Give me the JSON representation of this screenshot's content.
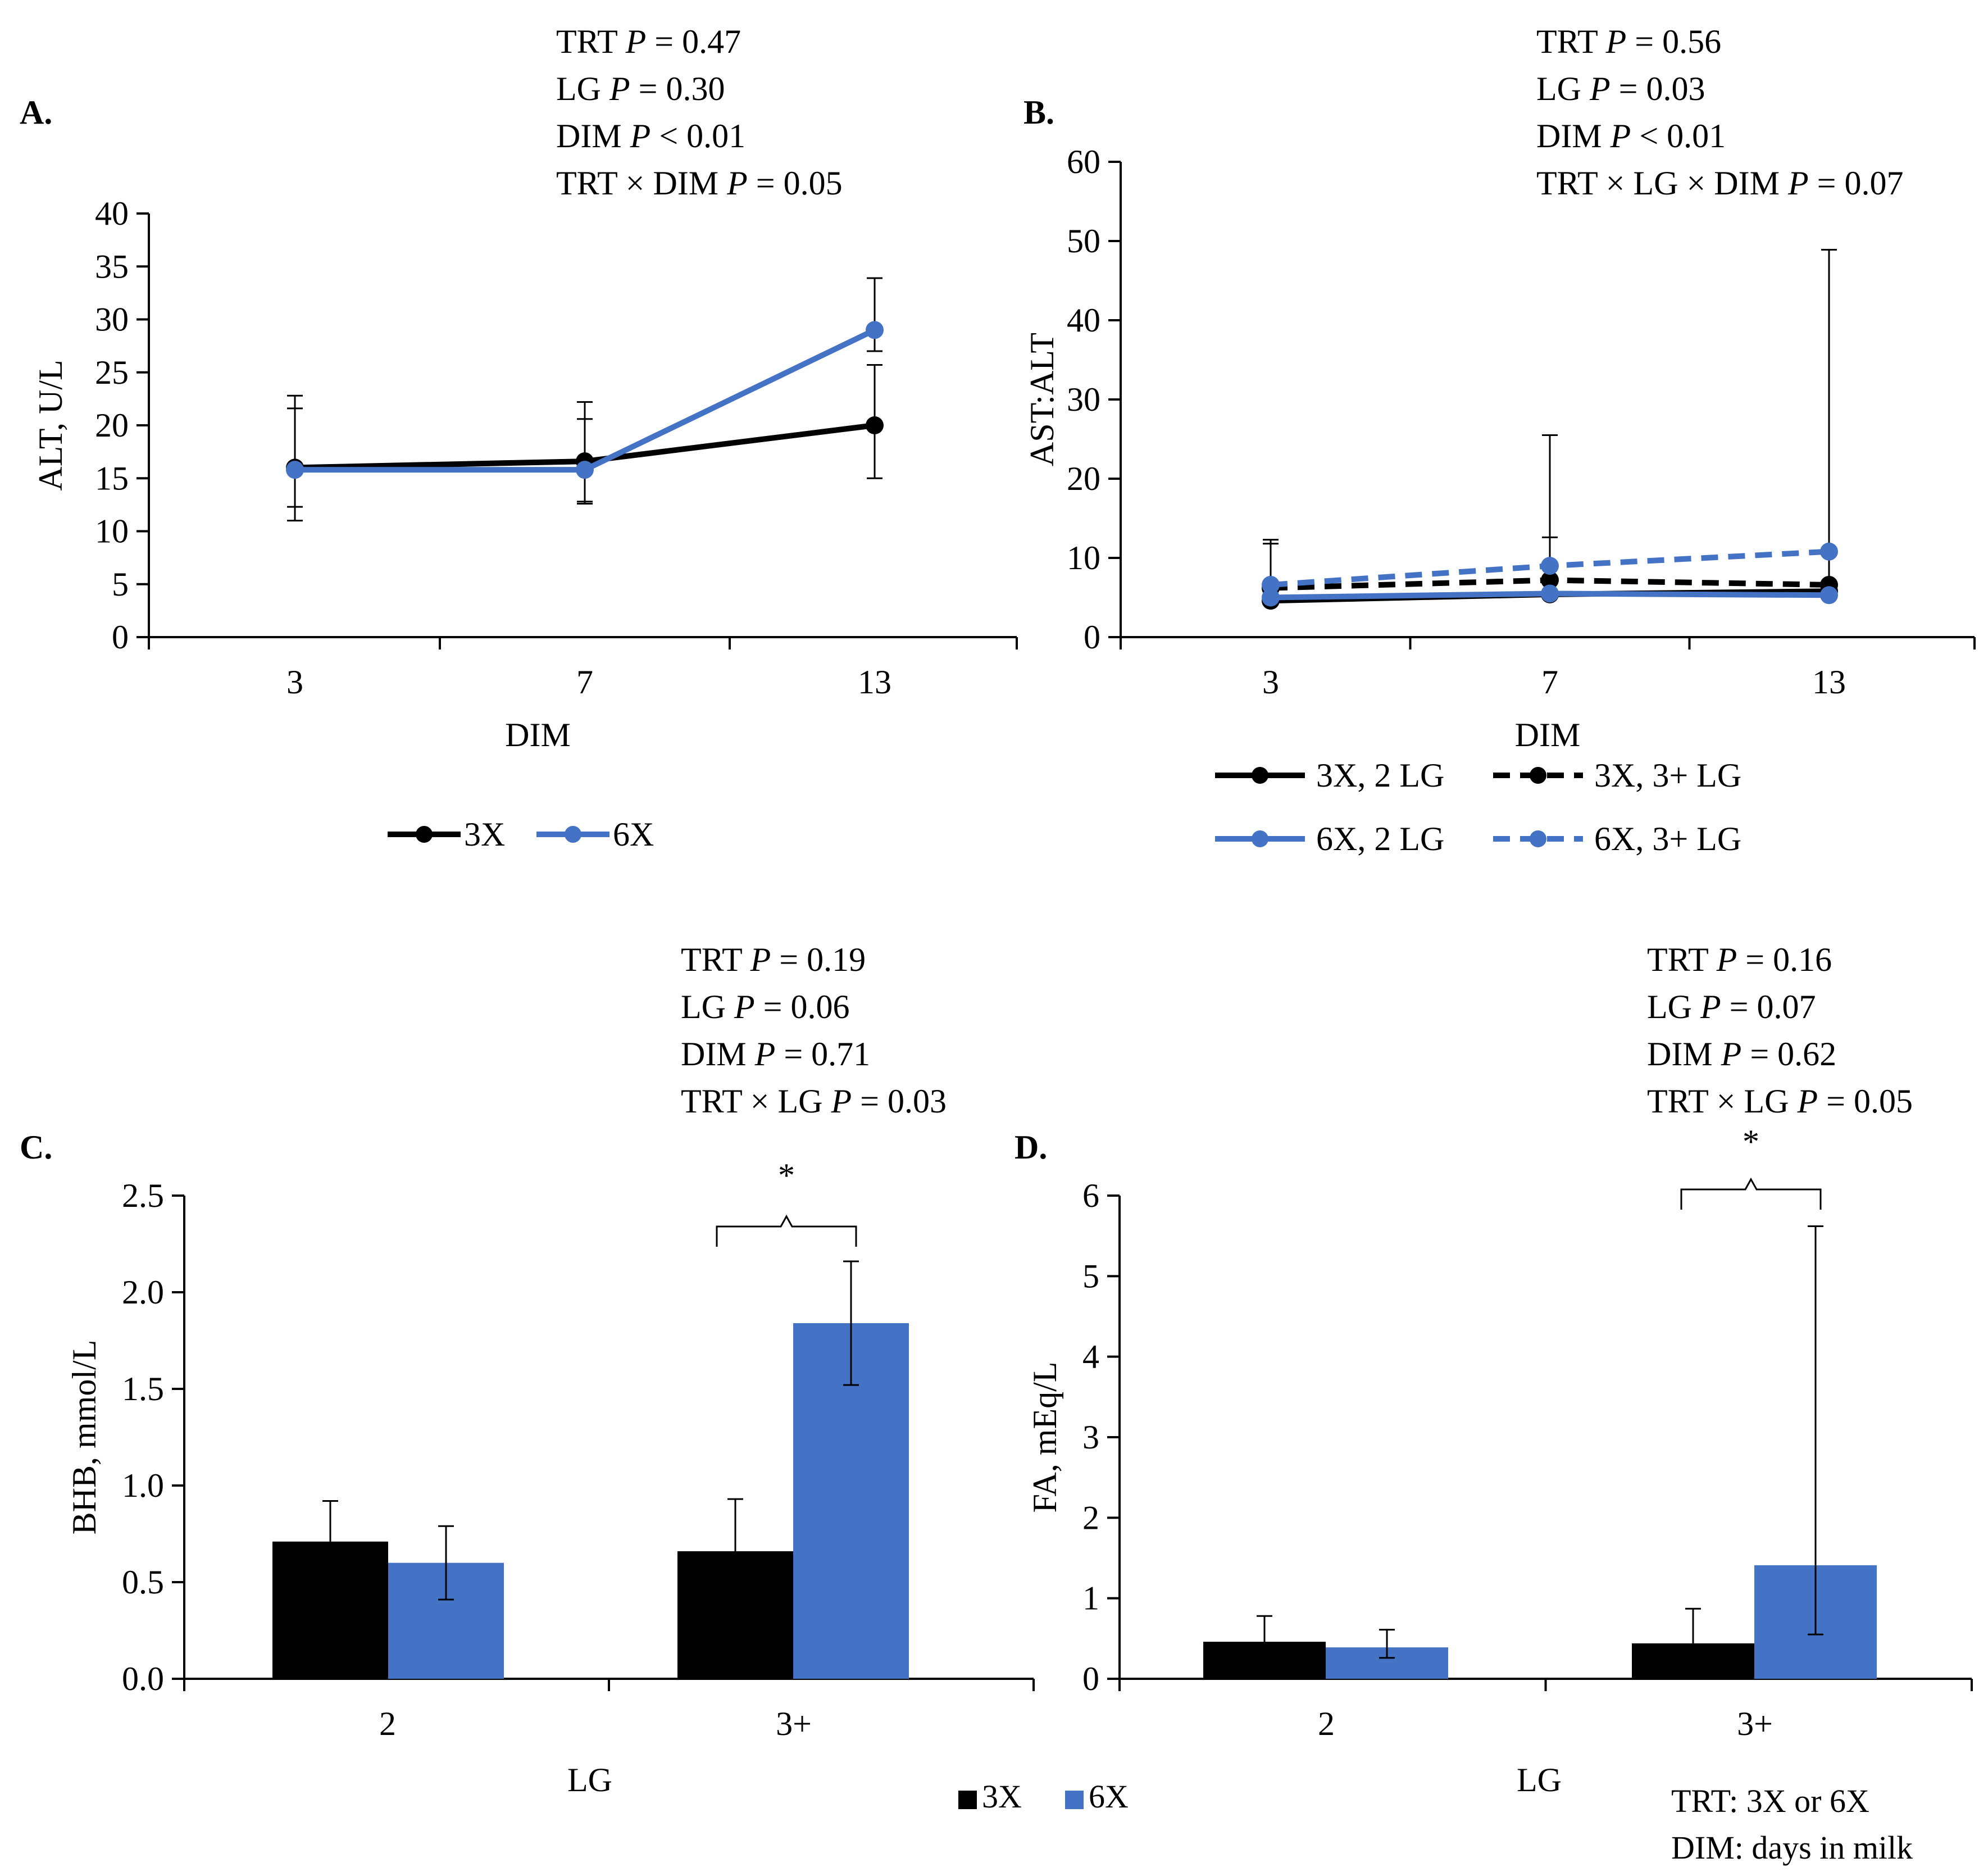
{
  "colors": {
    "trt_3x": "#000000",
    "trt_6x": "#4472c4",
    "axis": "#000000"
  },
  "chart_data": [
    {
      "panel": "A.",
      "type": "line",
      "stats": [
        {
          "pre": "TRT ",
          "p": "P",
          "post": " = 0.47"
        },
        {
          "pre": "LG ",
          "p": "P",
          "post": " = 0.30"
        },
        {
          "pre": "DIM ",
          "p": "P",
          "post": " < 0.01"
        },
        {
          "pre": "TRT × DIM ",
          "p": "P",
          "post": " = 0.05"
        }
      ],
      "xlabel": "DIM",
      "ylabel": "ALT, U/L",
      "categories": [
        "3",
        "7",
        "13"
      ],
      "ylim": [
        0,
        40
      ],
      "yticks": [
        "0",
        "5",
        "10",
        "15",
        "20",
        "25",
        "30",
        "35",
        "40"
      ],
      "series": [
        {
          "name": "3X",
          "color": "#000000",
          "dashed": false,
          "values": [
            16.0,
            16.6,
            20.0
          ],
          "err_low": [
            12.3,
            12.8,
            15.0
          ],
          "err_high": [
            21.6,
            20.6,
            25.7
          ]
        },
        {
          "name": "6X",
          "color": "#4472c4",
          "dashed": false,
          "values": [
            15.8,
            15.8,
            29.0
          ],
          "err_low": [
            11.0,
            12.6,
            27.0
          ],
          "err_high": [
            22.8,
            22.2,
            33.9
          ]
        }
      ]
    },
    {
      "panel": "B.",
      "type": "line",
      "stats": [
        {
          "pre": "TRT ",
          "p": "P",
          "post": " = 0.56"
        },
        {
          "pre": "LG ",
          "p": "P",
          "post": " = 0.03"
        },
        {
          "pre": "DIM ",
          "p": "P",
          "post": " < 0.01"
        },
        {
          "pre": "TRT × LG × DIM ",
          "p": "P",
          "post": " = 0.07"
        }
      ],
      "xlabel": "DIM",
      "ylabel": "AST:ALT",
      "categories": [
        "3",
        "7",
        "13"
      ],
      "ylim": [
        0,
        60
      ],
      "yticks": [
        "0",
        "10",
        "20",
        "30",
        "40",
        "50",
        "60"
      ],
      "series": [
        {
          "name": "3X, 2 LG",
          "color": "#000000",
          "dashed": false,
          "values": [
            4.6,
            5.4,
            5.8
          ],
          "err_low": [
            null,
            null,
            null
          ],
          "err_high": [
            null,
            null,
            null
          ]
        },
        {
          "name": "3X, 3+ LG",
          "color": "#000000",
          "dashed": true,
          "values": [
            6.2,
            7.2,
            6.6
          ],
          "err_low": [
            null,
            null,
            null
          ],
          "err_high": [
            11.8,
            25.5,
            10.5
          ]
        },
        {
          "name": "6X, 2 LG",
          "color": "#4472c4",
          "dashed": false,
          "values": [
            5.0,
            5.5,
            5.3
          ],
          "err_low": [
            null,
            null,
            null
          ],
          "err_high": [
            null,
            null,
            null
          ]
        },
        {
          "name": "6X, 3+ LG",
          "color": "#4472c4",
          "dashed": true,
          "values": [
            6.6,
            9.0,
            10.8
          ],
          "err_low": [
            null,
            null,
            null
          ],
          "err_high": [
            12.3,
            12.6,
            48.9
          ]
        }
      ]
    },
    {
      "panel": "C.",
      "type": "bar",
      "stats": [
        {
          "pre": "TRT ",
          "p": "P",
          "post": " = 0.19"
        },
        {
          "pre": "LG ",
          "p": "P",
          "post": " = 0.06"
        },
        {
          "pre": "DIM ",
          "p": "P",
          "post": " = 0.71"
        },
        {
          "pre": "TRT × LG ",
          "p": "P",
          "post": " = 0.03"
        }
      ],
      "xlabel": "LG",
      "ylabel": "BHB, mmol/L",
      "categories": [
        "2",
        "3+"
      ],
      "ylim": [
        0,
        2.5
      ],
      "yticks": [
        "0.0",
        "0.5",
        "1.0",
        "1.5",
        "2.0",
        "2.5"
      ],
      "series": [
        {
          "name": "3X",
          "color": "#000000",
          "values": [
            0.71,
            0.66
          ],
          "err_low": [
            0.71,
            0.66
          ],
          "err_high": [
            0.92,
            0.93
          ]
        },
        {
          "name": "6X",
          "color": "#4472c4",
          "values": [
            0.6,
            1.84
          ],
          "err_low": [
            0.41,
            1.52
          ],
          "err_high": [
            0.79,
            2.16
          ]
        }
      ],
      "annotation": "*"
    },
    {
      "panel": "D.",
      "type": "bar",
      "stats": [
        {
          "pre": "TRT ",
          "p": "P",
          "post": " = 0.16"
        },
        {
          "pre": "LG ",
          "p": "P",
          "post": " = 0.07"
        },
        {
          "pre": "DIM ",
          "p": "P",
          "post": " = 0.62"
        },
        {
          "pre": "TRT × LG ",
          "p": "P",
          "post": " = 0.05"
        }
      ],
      "xlabel": "LG",
      "ylabel": "FA, mEq/L",
      "categories": [
        "2",
        "3+"
      ],
      "ylim": [
        0,
        6
      ],
      "yticks": [
        "0",
        "1",
        "2",
        "3",
        "4",
        "5",
        "6"
      ],
      "series": [
        {
          "name": "3X",
          "color": "#000000",
          "values": [
            0.46,
            0.44
          ],
          "err_low": [
            0.46,
            0.44
          ],
          "err_high": [
            0.78,
            0.87
          ]
        },
        {
          "name": "6X",
          "color": "#4472c4",
          "values": [
            0.39,
            1.41
          ],
          "err_low": [
            0.26,
            0.55
          ],
          "err_high": [
            0.61,
            5.62
          ]
        }
      ],
      "annotation": "*"
    }
  ],
  "bar_legend": [
    "3X",
    "6X"
  ],
  "footnote": [
    "TRT: 3X or 6X",
    "DIM: days in milk"
  ]
}
